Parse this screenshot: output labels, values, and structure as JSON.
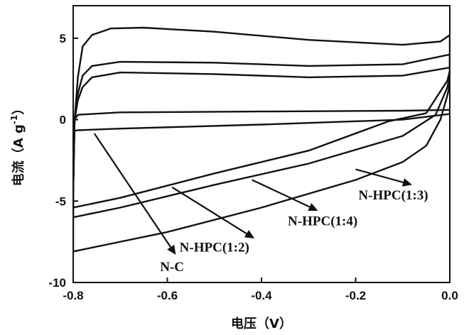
{
  "chart_data": {
    "type": "line",
    "title": "",
    "xlabel": "电压（V）",
    "ylabel": "电流（A g⁻¹）",
    "ylabel_parts": {
      "text": "电流（A g",
      "sup": "-1",
      "close": "）"
    },
    "xlim": [
      -0.8,
      0.0
    ],
    "ylim": [
      -10,
      7
    ],
    "x_ticks": [
      -0.8,
      -0.6,
      -0.4,
      -0.2,
      0.0
    ],
    "x_tick_labels": [
      "-0.8",
      "-0.6",
      "-0.4",
      "-0.2",
      "0.0"
    ],
    "y_ticks": [
      -10,
      -5,
      0,
      5
    ],
    "y_tick_labels": [
      "-10",
      "-5",
      "0",
      "5"
    ],
    "grid": false,
    "legend": "none",
    "series": [
      {
        "name": "N-C",
        "upper": [
          [
            -0.8,
            -2.8
          ],
          [
            -0.797,
            0.0
          ],
          [
            -0.79,
            0.3
          ],
          [
            -0.7,
            0.45
          ],
          [
            -0.4,
            0.5
          ],
          [
            -0.1,
            0.55
          ],
          [
            0.0,
            0.6
          ]
        ],
        "lower": [
          [
            0.0,
            0.35
          ],
          [
            -0.1,
            -0.0
          ],
          [
            -0.4,
            -0.3
          ],
          [
            -0.7,
            -0.55
          ],
          [
            -0.79,
            -0.65
          ],
          [
            -0.8,
            -0.7
          ]
        ]
      },
      {
        "name": "N-HPC(1:2)",
        "upper": [
          [
            -0.8,
            -4.5
          ],
          [
            -0.797,
            0.0
          ],
          [
            -0.79,
            2.6
          ],
          [
            -0.78,
            4.5
          ],
          [
            -0.76,
            5.2
          ],
          [
            -0.72,
            5.6
          ],
          [
            -0.65,
            5.65
          ],
          [
            -0.5,
            5.4
          ],
          [
            -0.3,
            4.9
          ],
          [
            -0.1,
            4.6
          ],
          [
            -0.02,
            4.8
          ],
          [
            0.0,
            5.2
          ]
        ],
        "lower": [
          [
            0.0,
            2.2
          ],
          [
            -0.005,
            1.5
          ],
          [
            -0.02,
            0.0
          ],
          [
            -0.05,
            -1.6
          ],
          [
            -0.1,
            -2.6
          ],
          [
            -0.2,
            -3.7
          ],
          [
            -0.4,
            -5.4
          ],
          [
            -0.6,
            -6.9
          ],
          [
            -0.75,
            -7.8
          ],
          [
            -0.8,
            -8.1
          ]
        ]
      },
      {
        "name": "N-HPC(1:4)",
        "upper": [
          [
            -0.8,
            -4.5
          ],
          [
            -0.797,
            0.0
          ],
          [
            -0.79,
            1.6
          ],
          [
            -0.78,
            2.7
          ],
          [
            -0.76,
            3.3
          ],
          [
            -0.7,
            3.55
          ],
          [
            -0.5,
            3.5
          ],
          [
            -0.3,
            3.3
          ],
          [
            -0.1,
            3.4
          ],
          [
            0.0,
            4.0
          ]
        ],
        "lower": [
          [
            0.0,
            2.8
          ],
          [
            -0.005,
            2.0
          ],
          [
            -0.03,
            0.3
          ],
          [
            -0.1,
            -1.0
          ],
          [
            -0.3,
            -2.7
          ],
          [
            -0.5,
            -4.0
          ],
          [
            -0.7,
            -5.4
          ],
          [
            -0.8,
            -6.0
          ]
        ]
      },
      {
        "name": "N-HPC(1:3)",
        "upper": [
          [
            -0.8,
            -4.5
          ],
          [
            -0.797,
            0.0
          ],
          [
            -0.79,
            1.2
          ],
          [
            -0.78,
            2.0
          ],
          [
            -0.76,
            2.6
          ],
          [
            -0.7,
            2.9
          ],
          [
            -0.5,
            2.8
          ],
          [
            -0.3,
            2.6
          ],
          [
            -0.1,
            2.7
          ],
          [
            0.0,
            3.2
          ]
        ],
        "lower": [
          [
            0.0,
            3.0
          ],
          [
            -0.005,
            2.4
          ],
          [
            -0.05,
            0.4
          ],
          [
            -0.13,
            -0.1
          ],
          [
            -0.3,
            -1.9
          ],
          [
            -0.5,
            -3.3
          ],
          [
            -0.7,
            -4.8
          ],
          [
            -0.8,
            -5.4
          ]
        ]
      }
    ],
    "annotations": [
      {
        "text": "N-C",
        "label_at": [
          -0.59,
          -9.3
        ],
        "arrow_from": [
          -0.755,
          -0.85
        ],
        "arrow_to": [
          -0.582,
          -8.3
        ]
      },
      {
        "text": "N-HPC(1:2)",
        "label_at": [
          -0.5,
          -8.1
        ],
        "arrow_from": [
          -0.59,
          -4.15
        ],
        "arrow_to": [
          -0.415,
          -7.3
        ]
      },
      {
        "text": "N-HPC(1:4)",
        "label_at": [
          -0.27,
          -6.5
        ],
        "arrow_from": [
          -0.42,
          -3.7
        ],
        "arrow_to": [
          -0.28,
          -5.6
        ]
      },
      {
        "text": "N-HPC(1:3)",
        "label_at": [
          -0.12,
          -4.9
        ],
        "arrow_from": [
          -0.2,
          -3.05
        ],
        "arrow_to": [
          -0.08,
          -4.0
        ]
      }
    ]
  }
}
